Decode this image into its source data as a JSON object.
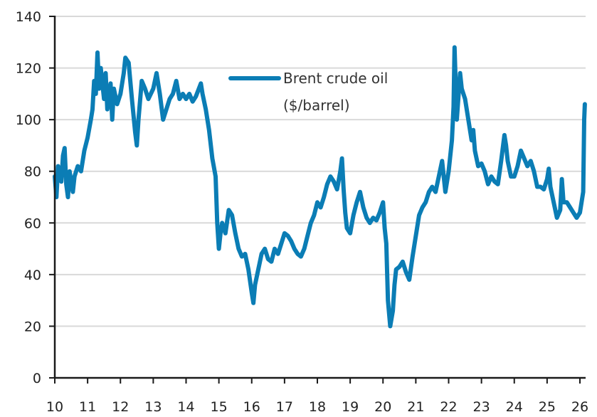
{
  "chart_data": {
    "type": "line",
    "title": "",
    "xlabel": "",
    "ylabel": "",
    "xlim": [
      10,
      26.2
    ],
    "ylim": [
      0,
      140
    ],
    "x_ticks": [
      "10",
      "11",
      "12",
      "13",
      "14",
      "15",
      "16",
      "17",
      "18",
      "19",
      "20",
      "21",
      "22",
      "23",
      "24",
      "25",
      "26"
    ],
    "y_ticks": [
      "0",
      "20",
      "40",
      "60",
      "80",
      "100",
      "120",
      "140"
    ],
    "grid": "horizontal",
    "legend_position": "top-center",
    "colors": {
      "series": "#0b7db5",
      "grid": "#d9d9d9",
      "axis": "#1a1a1a"
    },
    "series": [
      {
        "name_line1": "Brent crude oil",
        "name_line2": "($/barrel)",
        "x": [
          10.0,
          10.05,
          10.1,
          10.2,
          10.25,
          10.3,
          10.35,
          10.4,
          10.45,
          10.55,
          10.6,
          10.7,
          10.8,
          10.9,
          11.0,
          11.1,
          11.15,
          11.2,
          11.25,
          11.3,
          11.35,
          11.4,
          11.5,
          11.55,
          11.6,
          11.7,
          11.75,
          11.8,
          11.9,
          12.0,
          12.1,
          12.15,
          12.25,
          12.35,
          12.45,
          12.5,
          12.55,
          12.65,
          12.75,
          12.85,
          13.0,
          13.1,
          13.2,
          13.3,
          13.4,
          13.5,
          13.6,
          13.7,
          13.8,
          13.9,
          14.0,
          14.1,
          14.2,
          14.3,
          14.45,
          14.5,
          14.6,
          14.7,
          14.8,
          14.9,
          14.95,
          15.0,
          15.05,
          15.1,
          15.2,
          15.3,
          15.4,
          15.5,
          15.6,
          15.7,
          15.8,
          15.9,
          16.0,
          16.05,
          16.1,
          16.2,
          16.3,
          16.4,
          16.5,
          16.6,
          16.7,
          16.8,
          16.9,
          17.0,
          17.1,
          17.2,
          17.3,
          17.4,
          17.5,
          17.6,
          17.7,
          17.8,
          17.9,
          18.0,
          18.1,
          18.2,
          18.3,
          18.4,
          18.5,
          18.6,
          18.7,
          18.75,
          18.8,
          18.85,
          18.9,
          19.0,
          19.1,
          19.2,
          19.3,
          19.4,
          19.5,
          19.6,
          19.7,
          19.8,
          19.9,
          20.0,
          20.05,
          20.1,
          20.15,
          20.22,
          20.3,
          20.35,
          20.4,
          20.5,
          20.6,
          20.7,
          20.8,
          20.9,
          21.0,
          21.1,
          21.2,
          21.3,
          21.4,
          21.5,
          21.6,
          21.7,
          21.8,
          21.9,
          22.0,
          22.1,
          22.15,
          22.18,
          22.25,
          22.35,
          22.4,
          22.5,
          22.6,
          22.7,
          22.75,
          22.8,
          22.9,
          23.0,
          23.1,
          23.2,
          23.3,
          23.4,
          23.5,
          23.6,
          23.7,
          23.75,
          23.8,
          23.9,
          24.0,
          24.1,
          24.2,
          24.3,
          24.4,
          24.5,
          24.6,
          24.7,
          24.8,
          24.9,
          25.0,
          25.05,
          25.1,
          25.2,
          25.3,
          25.4,
          25.45,
          25.5,
          25.6,
          25.7,
          25.8,
          25.9,
          26.0,
          26.05,
          26.1,
          26.13,
          26.15
        ],
        "values": [
          78,
          70,
          82,
          76,
          86,
          89,
          75,
          70,
          80,
          72,
          78,
          82,
          80,
          88,
          93,
          100,
          104,
          115,
          110,
          126,
          112,
          120,
          108,
          118,
          104,
          114,
          100,
          112,
          106,
          110,
          118,
          124,
          122,
          108,
          95,
          90,
          100,
          115,
          112,
          108,
          112,
          118,
          110,
          100,
          104,
          108,
          110,
          115,
          108,
          110,
          108,
          110,
          107,
          109,
          114,
          110,
          104,
          96,
          85,
          78,
          60,
          50,
          56,
          60,
          56,
          65,
          63,
          56,
          50,
          47,
          48,
          42,
          33,
          29,
          36,
          42,
          48,
          50,
          46,
          45,
          50,
          48,
          52,
          56,
          55,
          53,
          50,
          48,
          47,
          50,
          55,
          60,
          63,
          68,
          66,
          70,
          75,
          78,
          76,
          73,
          80,
          85,
          73,
          64,
          58,
          56,
          63,
          68,
          72,
          66,
          62,
          60,
          62,
          61,
          64,
          68,
          58,
          52,
          30,
          20,
          26,
          36,
          42,
          43,
          45,
          41,
          38,
          47,
          55,
          63,
          66,
          68,
          72,
          74,
          72,
          78,
          84,
          72,
          80,
          92,
          105,
          128,
          100,
          118,
          112,
          108,
          100,
          92,
          96,
          88,
          82,
          83,
          80,
          75,
          78,
          76,
          75,
          84,
          94,
          90,
          84,
          78,
          78,
          82,
          88,
          85,
          82,
          84,
          80,
          74,
          74,
          73,
          77,
          81,
          74,
          68,
          62,
          65,
          77,
          68,
          68,
          66,
          64,
          62,
          64,
          68,
          72,
          100,
          106
        ]
      }
    ]
  }
}
